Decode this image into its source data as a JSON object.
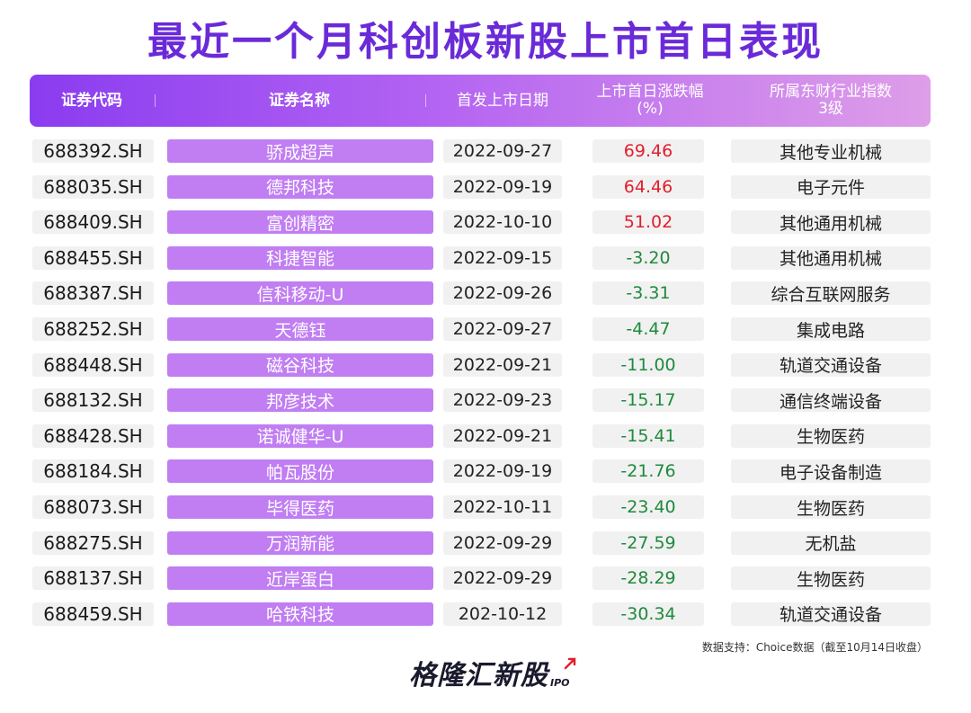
{
  "title": "最近一个月科创板新股上市首日表现",
  "header": {
    "code": "证券代码",
    "name": "证券名称",
    "date": "首发上市日期",
    "change_line1": "上市首日涨跌幅",
    "change_line2": "(%)",
    "industry_line1": "所属东财行业指数",
    "industry_line2": "3级"
  },
  "rows": [
    {
      "code": "688392.SH",
      "name": "骄成超声",
      "date": "2022-09-27",
      "change": "69.46",
      "industry": "其他专业机械"
    },
    {
      "code": "688035.SH",
      "name": "德邦科技",
      "date": "2022-09-19",
      "change": "64.46",
      "industry": "电子元件"
    },
    {
      "code": "688409.SH",
      "name": "富创精密",
      "date": "2022-10-10",
      "change": "51.02",
      "industry": "其他通用机械"
    },
    {
      "code": "688455.SH",
      "name": "科捷智能",
      "date": "2022-09-15",
      "change": "-3.20",
      "industry": "其他通用机械"
    },
    {
      "code": "688387.SH",
      "name": "信科移动-U",
      "date": "2022-09-26",
      "change": "-3.31",
      "industry": "综合互联网服务"
    },
    {
      "code": "688252.SH",
      "name": "天德钰",
      "date": "2022-09-27",
      "change": "-4.47",
      "industry": "集成电路"
    },
    {
      "code": "688448.SH",
      "name": "磁谷科技",
      "date": "2022-09-21",
      "change": "-11.00",
      "industry": "轨道交通设备"
    },
    {
      "code": "688132.SH",
      "name": "邦彦技术",
      "date": "2022-09-23",
      "change": "-15.17",
      "industry": "通信终端设备"
    },
    {
      "code": "688428.SH",
      "name": "诺诚健华-U",
      "date": "2022-09-21",
      "change": "-15.41",
      "industry": "生物医药"
    },
    {
      "code": "688184.SH",
      "name": "帕瓦股份",
      "date": "2022-09-19",
      "change": "-21.76",
      "industry": "电子设备制造"
    },
    {
      "code": "688073.SH",
      "name": "毕得医药",
      "date": "2022-10-11",
      "change": "-23.40",
      "industry": "生物医药"
    },
    {
      "code": "688275.SH",
      "name": "万润新能",
      "date": "2022-09-29",
      "change": "-27.59",
      "industry": "无机盐"
    },
    {
      "code": "688137.SH",
      "name": "近岸蛋白",
      "date": "2022-09-29",
      "change": "-28.29",
      "industry": "生物医药"
    },
    {
      "code": "688459.SH",
      "name": "哈铁科技",
      "date": "202-10-12",
      "change": "-30.34",
      "industry": "轨道交通设备"
    }
  ],
  "source_note": "数据支持：Choice数据（截至10月14日收盘）",
  "logo": {
    "text": "格隆汇新股",
    "sub": "IPO"
  },
  "colors": {
    "title": "#6a2ad8",
    "up": "#e0202c",
    "down": "#1e8a3c",
    "name_cell": "#c07ef2"
  }
}
